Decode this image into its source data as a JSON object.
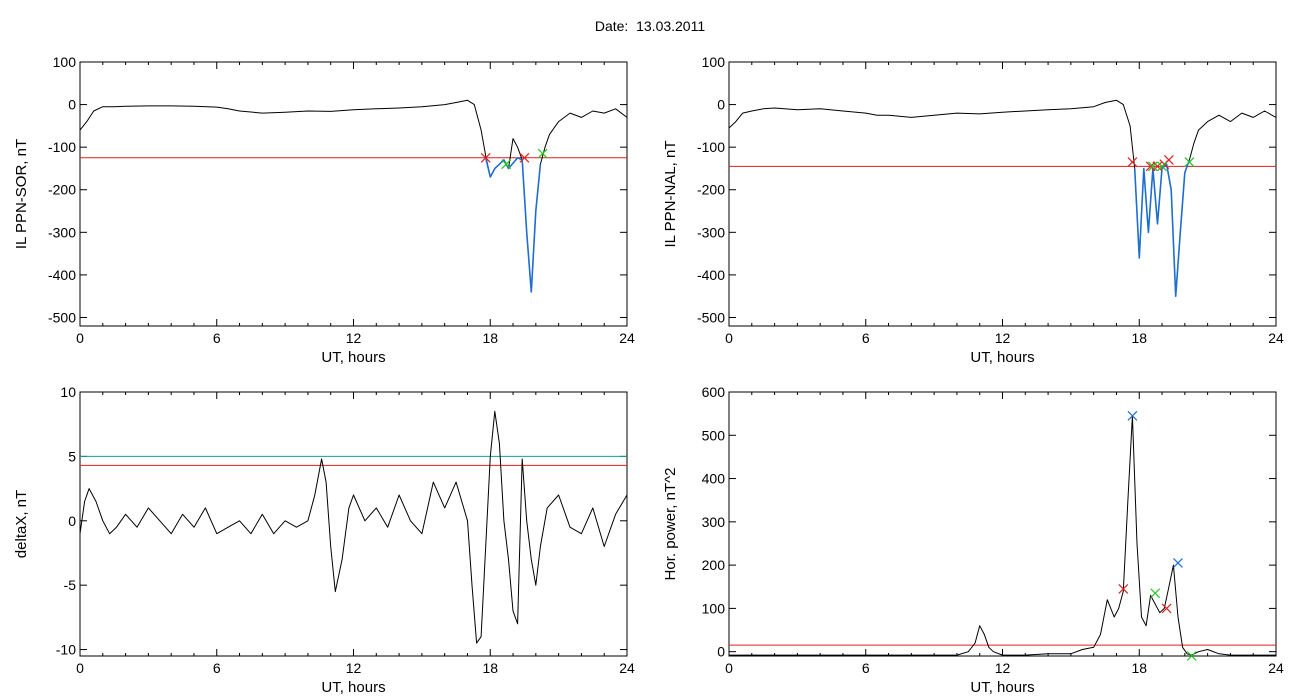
{
  "page": {
    "title": "Date:  13.03.2011"
  },
  "colors": {
    "trace": "#000000",
    "threshold_red": "#e02020",
    "threshold_cyan": "#0fa0a0",
    "event_blue": "#1f6fd1",
    "marker_red": "#e02020",
    "marker_green": "#22c322",
    "marker_blue": "#1f6fd1"
  },
  "chart_data": [
    {
      "type": "line",
      "xlabel": "UT, hours",
      "ylabel": "IL PPN-SOR, nT",
      "xlim": [
        0,
        24
      ],
      "ylim": [
        -520,
        100
      ],
      "xticks": [
        0,
        6,
        12,
        18,
        24
      ],
      "yticks": [
        100,
        0,
        -100,
        -200,
        -300,
        -400,
        -500
      ],
      "series": [
        {
          "x": [
            0,
            0.3,
            0.6,
            1,
            1.5,
            2,
            3,
            4,
            5,
            6,
            6.5,
            7,
            8,
            9,
            10,
            11,
            12,
            13,
            14,
            15,
            16,
            16.5,
            17,
            17.3,
            17.6,
            17.8,
            18,
            18.2,
            18.4,
            18.6,
            18.8,
            19,
            19.2,
            19.4,
            19.6,
            19.8,
            20,
            20.2,
            20.4,
            20.6,
            21,
            21.5,
            22,
            22.5,
            23,
            23.5,
            24
          ],
          "y": [
            -60,
            -40,
            -15,
            -5,
            -5,
            -4,
            -3,
            -3,
            -4,
            -6,
            -10,
            -15,
            -20,
            -18,
            -15,
            -16,
            -12,
            -10,
            -8,
            -5,
            0,
            5,
            10,
            0,
            -60,
            -120,
            -170,
            -150,
            -140,
            -130,
            -150,
            -80,
            -100,
            -130,
            -300,
            -440,
            -250,
            -140,
            -100,
            -70,
            -40,
            -20,
            -30,
            -15,
            -20,
            -10,
            -30
          ]
        },
        {
          "x": [
            17.8,
            18,
            18.2,
            18.4,
            18.6,
            18.8,
            19.2,
            19.4,
            19.6,
            19.8,
            20,
            20.2
          ],
          "y": [
            -125,
            -170,
            -150,
            -140,
            -130,
            -150,
            -125,
            -130,
            -300,
            -440,
            -250,
            -140
          ]
        }
      ],
      "thresholds": [
        {
          "y": -125,
          "color": "red"
        }
      ],
      "markers": [
        {
          "x": 17.8,
          "y": -125,
          "color": "red"
        },
        {
          "x": 18.7,
          "y": -140,
          "color": "green"
        },
        {
          "x": 19.5,
          "y": -125,
          "color": "red"
        },
        {
          "x": 20.3,
          "y": -115,
          "color": "green"
        }
      ]
    },
    {
      "type": "line",
      "xlabel": "UT, hours",
      "ylabel": "IL PPN-NAL, nT",
      "xlim": [
        0,
        24
      ],
      "ylim": [
        -520,
        100
      ],
      "xticks": [
        0,
        6,
        12,
        18,
        24
      ],
      "yticks": [
        100,
        0,
        -100,
        -200,
        -300,
        -400,
        -500
      ],
      "series": [
        {
          "x": [
            0,
            0.3,
            0.6,
            1,
            1.5,
            2,
            3,
            4,
            5,
            6,
            6.5,
            7,
            8,
            9,
            10,
            11,
            12,
            13,
            14,
            15,
            16,
            16.5,
            17,
            17.3,
            17.6,
            17.8,
            18,
            18.2,
            18.4,
            18.6,
            18.8,
            19,
            19.2,
            19.4,
            19.6,
            19.8,
            20,
            20.2,
            20.4,
            20.6,
            21,
            21.5,
            22,
            22.5,
            23,
            23.5,
            24
          ],
          "y": [
            -55,
            -40,
            -20,
            -15,
            -10,
            -8,
            -12,
            -10,
            -15,
            -20,
            -25,
            -25,
            -30,
            -25,
            -20,
            -22,
            -18,
            -15,
            -12,
            -10,
            -5,
            5,
            10,
            0,
            -50,
            -150,
            -360,
            -150,
            -300,
            -150,
            -280,
            -150,
            -140,
            -200,
            -450,
            -300,
            -160,
            -130,
            -90,
            -60,
            -40,
            -25,
            -40,
            -20,
            -30,
            -15,
            -30
          ]
        },
        {
          "x": [
            17.8,
            18,
            18.2,
            18.4,
            18.6,
            18.8,
            19,
            19.2,
            19.4,
            19.6,
            19.8,
            20,
            20.2
          ],
          "y": [
            -150,
            -360,
            -150,
            -300,
            -150,
            -280,
            -150,
            -140,
            -200,
            -450,
            -300,
            -160,
            -130
          ]
        }
      ],
      "thresholds": [
        {
          "y": -145,
          "color": "red"
        }
      ],
      "markers": [
        {
          "x": 17.7,
          "y": -135,
          "color": "red"
        },
        {
          "x": 18.5,
          "y": -145,
          "color": "red"
        },
        {
          "x": 18.8,
          "y": -145,
          "color": "red"
        },
        {
          "x": 19.1,
          "y": -140,
          "color": "red"
        },
        {
          "x": 19.3,
          "y": -130,
          "color": "red"
        },
        {
          "x": 18.6,
          "y": -145,
          "color": "green"
        },
        {
          "x": 19.0,
          "y": -145,
          "color": "green"
        },
        {
          "x": 20.2,
          "y": -135,
          "color": "green"
        }
      ]
    },
    {
      "type": "line",
      "xlabel": "UT, hours",
      "ylabel": "deltaX, nT",
      "xlim": [
        0,
        24
      ],
      "ylim": [
        -10.5,
        10
      ],
      "xticks": [
        0,
        6,
        12,
        18,
        24
      ],
      "yticks": [
        10,
        5,
        0,
        -5,
        -10
      ],
      "series": [
        {
          "x": [
            0,
            0.2,
            0.4,
            0.7,
            1,
            1.3,
            1.6,
            2,
            2.5,
            3,
            3.5,
            4,
            4.5,
            5,
            5.5,
            6,
            6.5,
            7,
            7.5,
            8,
            8.5,
            9,
            9.5,
            10,
            10.3,
            10.6,
            10.8,
            11,
            11.2,
            11.5,
            11.8,
            12,
            12.5,
            13,
            13.5,
            14,
            14.5,
            15,
            15.5,
            16,
            16.5,
            17,
            17.2,
            17.4,
            17.6,
            17.8,
            18,
            18.2,
            18.4,
            18.6,
            18.8,
            19,
            19.2,
            19.4,
            19.6,
            19.8,
            20,
            20.2,
            20.5,
            21,
            21.5,
            22,
            22.5,
            23,
            23.5,
            24
          ],
          "y": [
            -1,
            1.5,
            2.5,
            1.5,
            0,
            -1,
            -0.5,
            0.5,
            -0.5,
            1,
            0,
            -1,
            0.5,
            -0.5,
            1,
            -1,
            -0.5,
            0,
            -1,
            0.5,
            -1,
            0,
            -0.5,
            0,
            2,
            4.8,
            3,
            -2,
            -5.5,
            -3,
            1,
            2,
            0,
            1,
            -0.5,
            2,
            0,
            -1,
            3,
            1,
            3,
            0,
            -5,
            -9.5,
            -9,
            -2,
            5,
            8.5,
            6,
            0,
            -3,
            -7,
            -8,
            4.8,
            0,
            -3,
            -5,
            -2,
            1,
            2,
            -0.5,
            -1,
            1,
            -2,
            0.5,
            2
          ]
        }
      ],
      "thresholds": [
        {
          "y": 5.0,
          "color": "cyan"
        },
        {
          "y": 4.3,
          "color": "red"
        }
      ],
      "markers": []
    },
    {
      "type": "line",
      "xlabel": "UT, hours",
      "ylabel": "Hor. power, nT^2",
      "xlim": [
        0,
        24
      ],
      "ylim": [
        -10,
        600
      ],
      "xticks": [
        0,
        6,
        12,
        18,
        24
      ],
      "yticks": [
        600,
        500,
        400,
        300,
        200,
        100,
        0
      ],
      "series": [
        {
          "x": [
            0,
            2,
            4,
            6,
            8,
            10,
            10.5,
            10.8,
            11,
            11.2,
            11.4,
            11.6,
            12,
            13,
            14,
            15,
            15.5,
            16,
            16.3,
            16.6,
            16.9,
            17.1,
            17.3,
            17.5,
            17.7,
            17.9,
            18.1,
            18.3,
            18.5,
            18.7,
            18.9,
            19.1,
            19.3,
            19.5,
            19.7,
            19.9,
            20.1,
            20.3,
            20.6,
            21,
            21.5,
            22,
            23,
            24
          ],
          "y": [
            -8,
            -8,
            -8,
            -8,
            -8,
            -8,
            0,
            20,
            60,
            40,
            10,
            0,
            -8,
            -8,
            -5,
            -5,
            5,
            10,
            40,
            120,
            80,
            100,
            140,
            350,
            545,
            250,
            80,
            60,
            130,
            110,
            90,
            100,
            150,
            200,
            80,
            10,
            -5,
            -8,
            0,
            5,
            -5,
            -8,
            -8,
            -8
          ]
        }
      ],
      "thresholds": [
        {
          "y": 15,
          "color": "red"
        }
      ],
      "markers": [
        {
          "x": 17.7,
          "y": 545,
          "color": "blue"
        },
        {
          "x": 19.7,
          "y": 205,
          "color": "blue"
        },
        {
          "x": 17.3,
          "y": 145,
          "color": "red"
        },
        {
          "x": 19.2,
          "y": 100,
          "color": "red"
        },
        {
          "x": 18.7,
          "y": 135,
          "color": "green"
        },
        {
          "x": 20.3,
          "y": -10,
          "color": "green"
        }
      ]
    }
  ]
}
